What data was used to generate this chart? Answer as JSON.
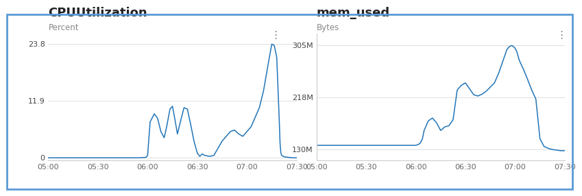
{
  "cpu_title": "CPUUtilization",
  "cpu_ylabel": "Percent",
  "mem_title": "mem_used",
  "mem_ylabel": "Bytes",
  "line_color": "#2275b8",
  "bg_color": "#ffffff",
  "border_color": "#5B9BD5",
  "title_fontsize": 13,
  "label_fontsize": 8.5,
  "tick_fontsize": 8,
  "x_ticks": [
    "05:00",
    "05:30",
    "06:00",
    "06:30",
    "07:00",
    "07:30"
  ],
  "x_tick_vals": [
    0,
    6,
    12,
    18,
    24,
    30
  ],
  "cpu_yticks": [
    0,
    11.9,
    23.8
  ],
  "cpu_ytick_labels": [
    "0",
    "11.9",
    "23.8"
  ],
  "mem_yticks": [
    130,
    218,
    305
  ],
  "mem_ytick_labels": [
    "130M",
    "218M",
    "305M"
  ],
  "cpu_x": [
    0,
    1,
    2,
    3,
    4,
    5,
    6,
    7,
    8,
    9,
    10,
    11,
    11.8,
    12.0,
    12.3,
    12.8,
    13.2,
    13.6,
    14.0,
    14.3,
    14.7,
    15.0,
    15.3,
    15.6,
    16.0,
    16.4,
    16.8,
    17.2,
    17.6,
    18.0,
    18.3,
    18.6,
    18.9,
    19.5,
    20.0,
    20.5,
    21.0,
    21.5,
    22.0,
    22.5,
    23.0,
    23.5,
    24.0,
    24.5,
    25.0,
    25.5,
    26.0,
    26.5,
    27.0,
    27.3,
    27.6,
    27.9,
    28.0,
    28.1,
    28.2,
    28.5,
    29.0,
    29.5,
    30
  ],
  "cpu_y": [
    0,
    0,
    0,
    0,
    0,
    0,
    0,
    0,
    0,
    0,
    0,
    0,
    0.1,
    0.5,
    7.5,
    9.2,
    8.3,
    5.5,
    4.2,
    6.5,
    10.2,
    10.8,
    8.0,
    5.0,
    7.8,
    10.5,
    10.2,
    7.0,
    3.5,
    1.0,
    0.3,
    0.8,
    0.5,
    0.3,
    0.5,
    2.0,
    3.5,
    4.5,
    5.5,
    5.8,
    5.0,
    4.5,
    5.5,
    6.5,
    8.5,
    10.5,
    14.0,
    19.0,
    23.8,
    23.5,
    21.0,
    8.0,
    3.0,
    1.0,
    0.5,
    0.2,
    0.1,
    0.0,
    0
  ],
  "mem_x": [
    0,
    1,
    2,
    3,
    4,
    5,
    6,
    7,
    8,
    9,
    10,
    11,
    12,
    12.2,
    12.5,
    12.8,
    13.0,
    13.5,
    14.0,
    14.5,
    15.0,
    15.5,
    16.0,
    16.5,
    17.0,
    17.5,
    18.0,
    18.5,
    19.0,
    19.5,
    20.0,
    20.5,
    21.0,
    21.5,
    22.0,
    22.5,
    23.0,
    23.3,
    23.6,
    23.9,
    24.0,
    24.2,
    24.5,
    25.0,
    25.5,
    26.0,
    26.5,
    27.0,
    27.5,
    28.0,
    28.2,
    28.5,
    29.0,
    29.5,
    30
  ],
  "mem_y": [
    137,
    137,
    137,
    137,
    137,
    137,
    137,
    137,
    137,
    137,
    137,
    137,
    137,
    138,
    140,
    148,
    162,
    178,
    183,
    175,
    162,
    168,
    170,
    180,
    230,
    238,
    242,
    232,
    222,
    220,
    223,
    228,
    235,
    242,
    258,
    278,
    298,
    303,
    305,
    302,
    300,
    295,
    280,
    265,
    248,
    230,
    215,
    148,
    135,
    132,
    131,
    130,
    129,
    128,
    128
  ]
}
